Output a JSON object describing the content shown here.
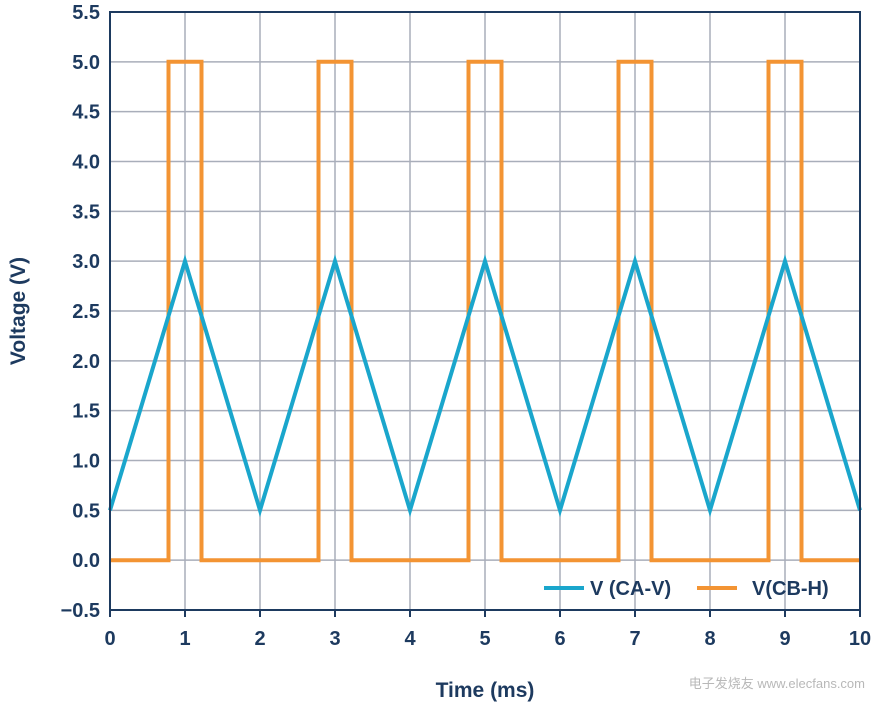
{
  "chart_data": {
    "type": "line",
    "xlabel": "Time (ms)",
    "ylabel": "Voltage (V)",
    "xlim": [
      0,
      10
    ],
    "ylim": [
      -0.5,
      5.5
    ],
    "x_ticks": [
      "0",
      "1",
      "2",
      "3",
      "4",
      "5",
      "6",
      "7",
      "8",
      "9",
      "10"
    ],
    "y_ticks": [
      "−0.5",
      "0.0",
      "0.5",
      "1.0",
      "1.5",
      "2.0",
      "2.5",
      "3.0",
      "3.5",
      "4.0",
      "4.5",
      "5.0",
      "5.5"
    ],
    "grid": true,
    "legend_position": "bottom-right",
    "series": [
      {
        "name": "V (CA-V)",
        "color": "#1aa6cc",
        "x": [
          0,
          1,
          2,
          3,
          4,
          5,
          6,
          7,
          8,
          9,
          10
        ],
        "y": [
          0.5,
          3.0,
          0.5,
          3.0,
          0.5,
          3.0,
          0.5,
          3.0,
          0.5,
          3.0,
          0.5
        ]
      },
      {
        "name": "V(CB-H)",
        "color": "#f39433",
        "x": [
          0,
          0.78,
          0.78,
          1.22,
          1.22,
          2.78,
          2.78,
          3.22,
          3.22,
          4.78,
          4.78,
          5.22,
          5.22,
          6.78,
          6.78,
          7.22,
          7.22,
          8.78,
          8.78,
          9.22,
          9.22,
          10
        ],
        "y": [
          0,
          0,
          5,
          5,
          0,
          0,
          5,
          5,
          0,
          0,
          5,
          5,
          0,
          0,
          5,
          5,
          0,
          0,
          5,
          5,
          0,
          0
        ]
      }
    ]
  },
  "watermark": "电子发烧友 www.elecfans.com"
}
